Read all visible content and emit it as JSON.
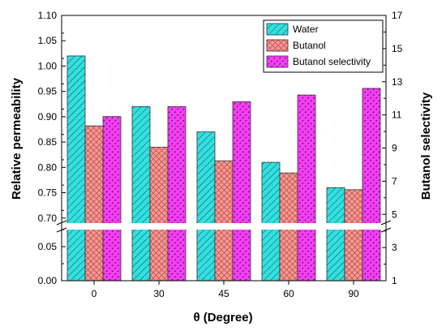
{
  "chart_data": {
    "type": "bar",
    "xlabel": "θ (Degree)",
    "ylabel": "Relative permeability",
    "y2label": "Butanol selectivity",
    "categories": [
      "0",
      "30",
      "45",
      "60",
      "90"
    ],
    "series": [
      {
        "name": "Water",
        "axis": "left",
        "values": [
          1.02,
          0.92,
          0.87,
          0.81,
          0.76
        ],
        "color": "#33e0e0",
        "pattern": "diagonal-hatch"
      },
      {
        "name": "Butanol",
        "axis": "left",
        "values": [
          0.882,
          0.84,
          0.813,
          0.789,
          0.756
        ],
        "color": "#f59a96",
        "pattern": "crosshatch"
      },
      {
        "name": "Butanol selectivity",
        "axis": "right",
        "values": [
          10.9,
          11.5,
          11.8,
          12.2,
          12.6
        ],
        "color": "#f33ff3",
        "pattern": "dots"
      }
    ],
    "left_axis": {
      "lower_segment": {
        "range": [
          0,
          0.075
        ],
        "ticks": [
          "0.00",
          "0.05"
        ],
        "tick_values": [
          0,
          0.05
        ]
      },
      "upper_segment": {
        "range": [
          0.69,
          1.1
        ],
        "ticks": [
          "0.70",
          "0.75",
          "0.80",
          "0.85",
          "0.90",
          "0.95",
          "1.00",
          "1.05",
          "1.10"
        ],
        "tick_values": [
          0.7,
          0.75,
          0.8,
          0.85,
          0.9,
          0.95,
          1.0,
          1.05,
          1.1
        ]
      },
      "scale_break": true
    },
    "right_axis": {
      "range": [
        1,
        17
      ],
      "ticks": [
        "1",
        "3",
        "5",
        "7",
        "9",
        "11",
        "13",
        "15",
        "17"
      ],
      "tick_values": [
        1,
        3,
        5,
        7,
        9,
        11,
        13,
        15,
        17
      ]
    },
    "legend": {
      "placement": "top-right"
    },
    "grid": false
  }
}
